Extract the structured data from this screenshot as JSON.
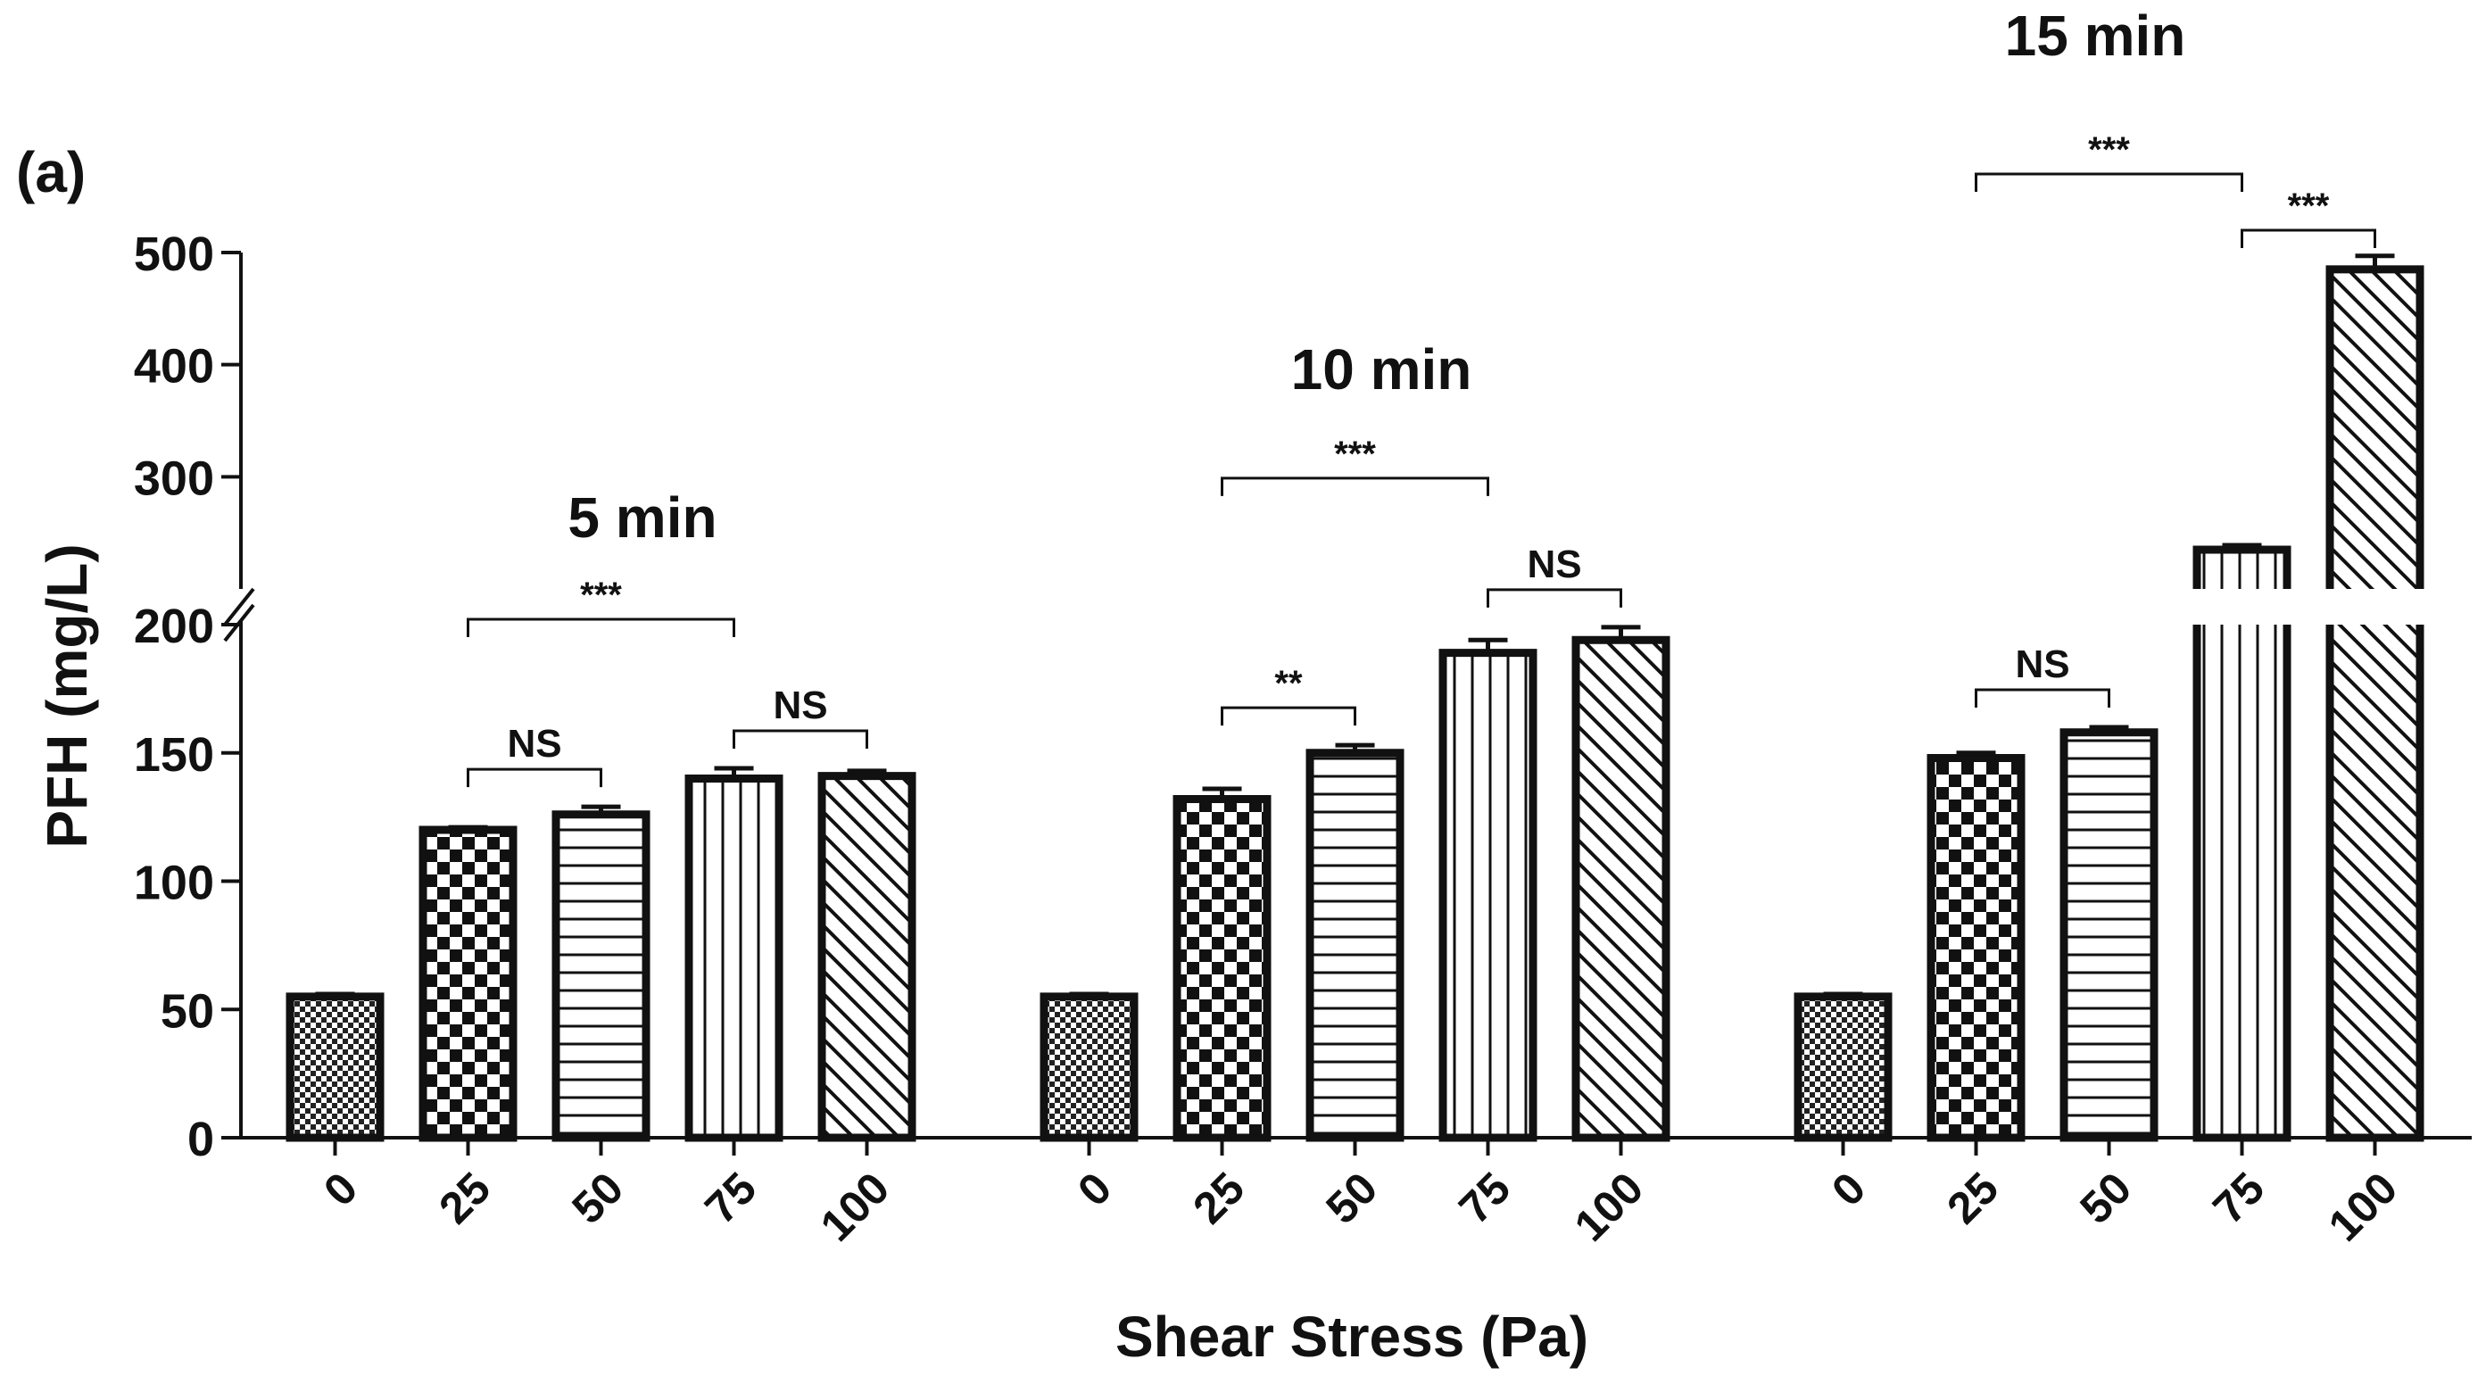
{
  "panel_label": "(a)",
  "chart_data": {
    "type": "bar",
    "title": "",
    "xlabel": "Shear Stress (Pa)",
    "ylabel": "PFH (mg/L)",
    "categories": [
      "0",
      "25",
      "50",
      "75",
      "100"
    ],
    "axis_break": {
      "lower_range": [
        0,
        200
      ],
      "upper_range": [
        200,
        500
      ]
    },
    "lower_ticks": [
      0,
      50,
      100,
      150,
      200
    ],
    "upper_ticks": [
      300,
      400,
      500
    ],
    "groups": [
      {
        "name": "5 min",
        "values": [
          55,
          120,
          126,
          140,
          141
        ],
        "errors": [
          1,
          1,
          3,
          4,
          2
        ],
        "comparisons": [
          {
            "from": 1,
            "to": 2,
            "label": "NS"
          },
          {
            "from": 3,
            "to": 4,
            "label": "NS"
          },
          {
            "from": 1,
            "to": 3,
            "label": "***"
          }
        ]
      },
      {
        "name": "10 min",
        "values": [
          55,
          132,
          150,
          189,
          194
        ],
        "errors": [
          1,
          4,
          3,
          5,
          5
        ],
        "comparisons": [
          {
            "from": 1,
            "to": 2,
            "label": "**"
          },
          {
            "from": 3,
            "to": 4,
            "label": "NS"
          },
          {
            "from": 1,
            "to": 3,
            "label": "***"
          }
        ]
      },
      {
        "name": "15 min",
        "values": [
          55,
          148,
          158,
          235,
          485
        ],
        "errors": [
          1,
          2,
          2,
          4,
          12
        ],
        "comparisons": [
          {
            "from": 1,
            "to": 2,
            "label": "NS"
          },
          {
            "from": 3,
            "to": 4,
            "label": "***"
          },
          {
            "from": 1,
            "to": 3,
            "label": "***"
          }
        ]
      }
    ],
    "patterns": [
      "fine-checker",
      "checker",
      "horizontal-lines",
      "vertical-lines",
      "diagonal-lines"
    ],
    "colors": {
      "ink": "#111111",
      "fill": "#ffffff"
    }
  }
}
